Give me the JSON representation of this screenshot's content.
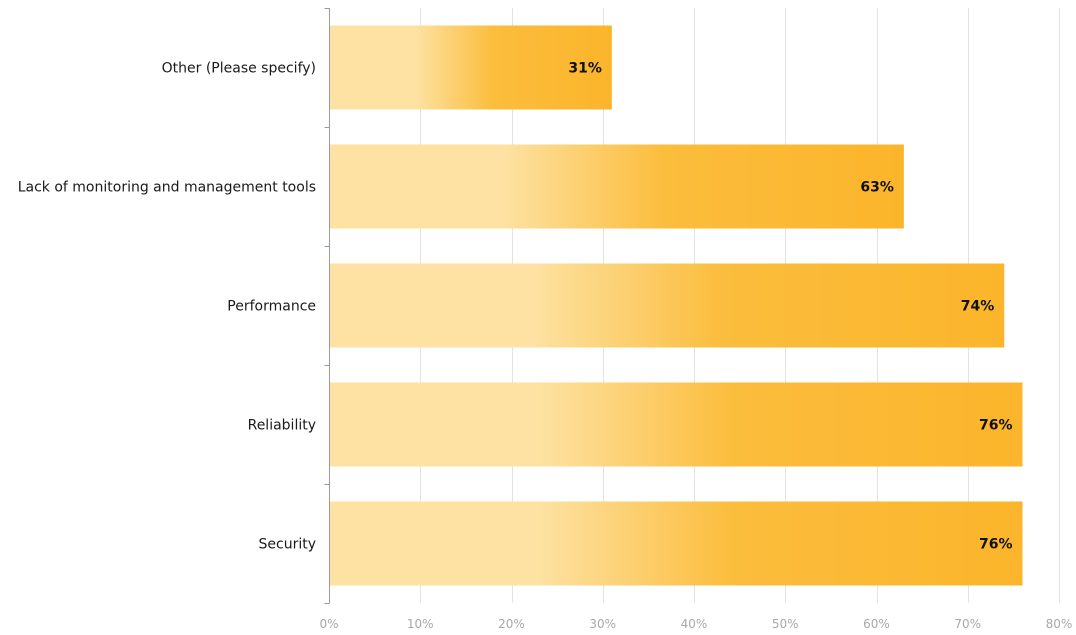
{
  "chart_data": {
    "type": "bar",
    "orientation": "horizontal",
    "categories": [
      "Other (Please specify)",
      "Lack of monitoring and management tools",
      "Performance",
      "Reliability",
      "Security"
    ],
    "values": [
      31,
      63,
      74,
      76,
      76
    ],
    "data_labels": [
      "31%",
      "63%",
      "74%",
      "76%",
      "76%"
    ],
    "xlim": [
      0,
      80
    ],
    "x_ticks": [
      0,
      10,
      20,
      30,
      40,
      50,
      60,
      70,
      80
    ],
    "x_tick_labels": [
      "0%",
      "10%",
      "20%",
      "30%",
      "40%",
      "50%",
      "60%",
      "70%",
      "80%"
    ],
    "grid": "vertical",
    "legend": "none",
    "title": "",
    "xlabel": "",
    "ylabel": "",
    "colors": {
      "bar_start": "#fde2a3",
      "bar_mid": "#fbbd3d",
      "bar_end": "#fbb52b",
      "grid": "#e3e3e3",
      "axis": "#9a9a9a",
      "tick_text": "#a8a8a8",
      "label_text": "#1a1a1a"
    }
  }
}
